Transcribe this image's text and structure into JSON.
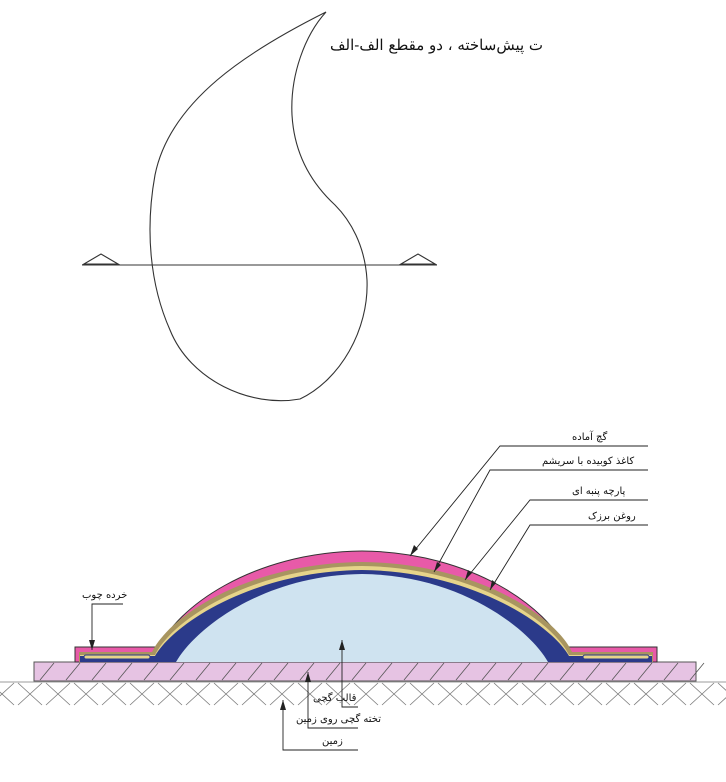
{
  "title": "ت پیش‌ساخته ، دو مقطع الف-الف",
  "labels": {
    "ready_plaster": "گچ آماده",
    "glued_paper": "کاغذ کوبیده با سریشم",
    "cotton_cloth": "پارچه پنبه ای",
    "linseed_oil": "روغن برزک",
    "wood_chips": "خرده چوب",
    "plaster_mold": "قالب گچی",
    "plaster_board": "تخته گچی روی زمین",
    "ground": "زمین"
  },
  "colors": {
    "plaster": "#e85aa8",
    "paper": "#a89560",
    "cloth": "#e6d48a",
    "oil": "#2b3a8a",
    "mold": "#cfe3f0",
    "board": "#e6c3e3",
    "ground_hatch": "#7a7a7a",
    "line": "#333333"
  }
}
